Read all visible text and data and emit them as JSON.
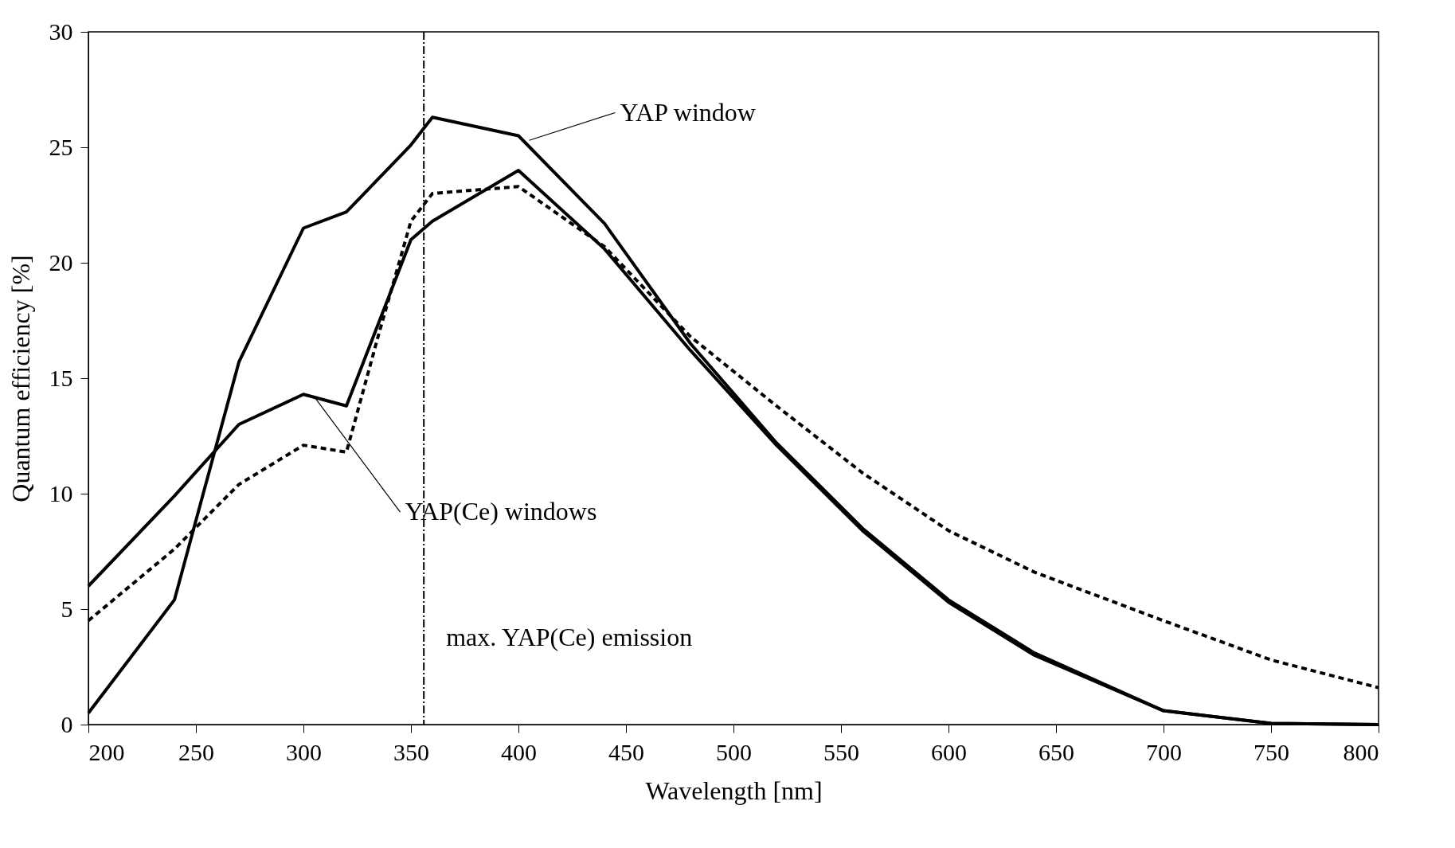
{
  "chart_data": {
    "type": "line",
    "xlabel": "Wavelength [nm]",
    "ylabel": "Quantum efficiency [%]",
    "xlim": [
      200,
      800
    ],
    "xticks": [
      200,
      250,
      300,
      350,
      400,
      450,
      500,
      550,
      600,
      650,
      700,
      750,
      800
    ],
    "ylim": [
      0,
      30
    ],
    "yticks": [
      0,
      5,
      10,
      15,
      20,
      25,
      30
    ],
    "grid": false,
    "series": [
      {
        "color": "#000000",
        "line_style": "solid",
        "x": [
          200,
          240,
          270,
          300,
          320,
          350,
          360,
          400,
          440,
          480,
          520,
          560,
          600,
          640,
          700,
          750,
          800
        ],
        "values": [
          0.5,
          5.4,
          15.7,
          21.5,
          22.2,
          25.1,
          26.3,
          25.5,
          21.7,
          16.5,
          12.2,
          8.5,
          5.4,
          3.1,
          0.6,
          0.05,
          0
        ]
      },
      {
        "color": "#000000",
        "line_style": "solid",
        "x": [
          200,
          240,
          270,
          300,
          320,
          350,
          360,
          400,
          440,
          480,
          520,
          560,
          600,
          640,
          700,
          750,
          800
        ],
        "values": [
          6.0,
          9.9,
          13.0,
          14.3,
          13.8,
          21.0,
          21.8,
          24.0,
          20.6,
          16.2,
          12.1,
          8.4,
          5.3,
          3.0,
          0.6,
          0.05,
          0
        ]
      },
      {
        "color": "#000000",
        "line_style": "dashed",
        "x": [
          200,
          240,
          270,
          300,
          320,
          335,
          350,
          360,
          400,
          440,
          480,
          520,
          560,
          600,
          640,
          700,
          750,
          800
        ],
        "values": [
          4.5,
          7.6,
          10.4,
          12.1,
          11.8,
          16.9,
          21.8,
          23.0,
          23.3,
          20.7,
          16.8,
          13.8,
          10.9,
          8.4,
          6.6,
          4.5,
          2.8,
          1.6
        ]
      }
    ],
    "ref_lines": [
      {
        "axis": "x",
        "value": 356,
        "label": "max. YAP(Ce) emission",
        "line_style": "dashed",
        "color": "#000000"
      }
    ],
    "annotations": [
      {
        "text": "YAP window",
        "x": 405,
        "y": 25.3
      },
      {
        "text": "YAP(Ce) windows",
        "x": 305,
        "y": 14.2
      }
    ]
  }
}
